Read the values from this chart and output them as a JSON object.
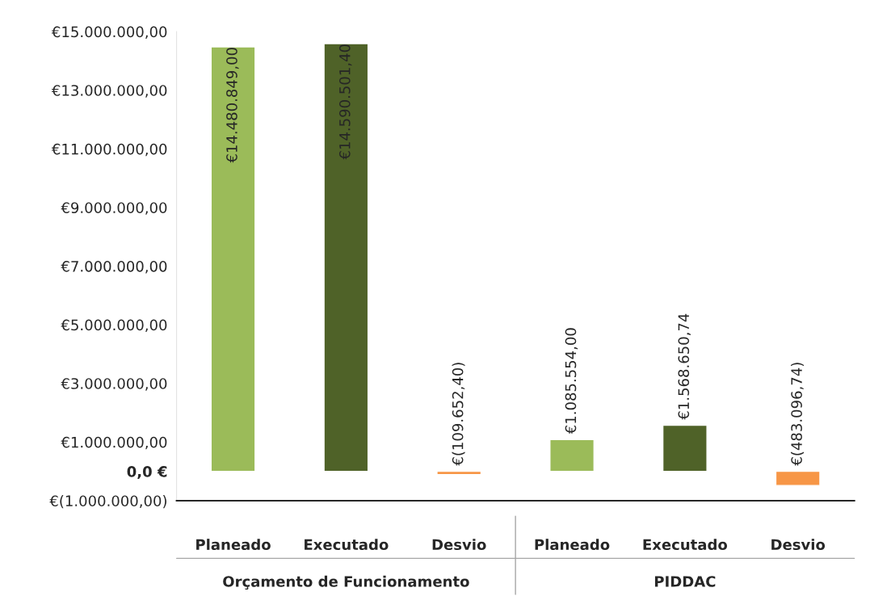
{
  "chart_data": {
    "type": "bar",
    "categories": [
      "Planeado",
      "Executado",
      "Desvio",
      "Planeado",
      "Executado",
      "Desvio"
    ],
    "values": [
      14480849.0,
      14590501.4,
      -109652.4,
      1085554.0,
      1568650.74,
      -483096.74
    ],
    "colors": [
      "#9bbb59",
      "#4f6228",
      "#f79646",
      "#9bbb59",
      "#4f6228",
      "#f79646"
    ],
    "value_labels": [
      "€14.480.849,00",
      "€14.590.501,40",
      "€(109.652,40)",
      "€1.085.554,00",
      "€1.568.650,74",
      "€(483.096,74)"
    ],
    "annotations": [
      "Orçamento de Funcionamento",
      "PIDDAC"
    ],
    "ylim": [
      -1000000,
      15000000
    ],
    "yticks": [
      {
        "value": -1000000,
        "label": "€(1.000.000,00)"
      },
      {
        "value": 0,
        "label": "0,0 €"
      },
      {
        "value": 1000000,
        "label": "€1.000.000,00"
      },
      {
        "value": 3000000,
        "label": "€3.000.000,00"
      },
      {
        "value": 5000000,
        "label": "€5.000.000,00"
      },
      {
        "value": 7000000,
        "label": "€7.000.000,00"
      },
      {
        "value": 9000000,
        "label": "€9.000.000,00"
      },
      {
        "value": 11000000,
        "label": "€11.000.000,00"
      },
      {
        "value": 13000000,
        "label": "€13.000.000,00"
      },
      {
        "value": 15000000,
        "label": "€15.000.000,00"
      }
    ],
    "grid": false,
    "legend": false
  }
}
